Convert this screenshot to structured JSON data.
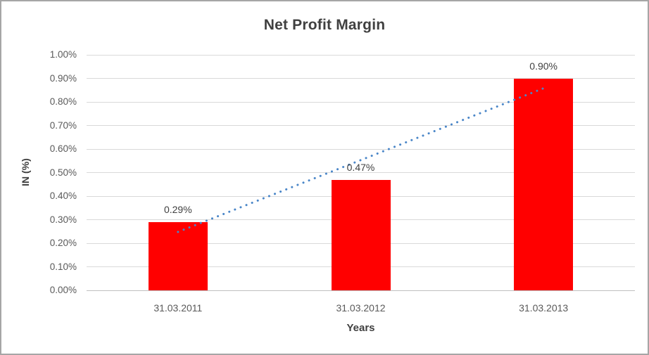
{
  "chart_data": {
    "type": "bar",
    "title": "Net Profit Margin",
    "xlabel": "Years",
    "ylabel": "IN (%)",
    "categories": [
      "31.03.2011",
      "31.03.2012",
      "31.03.2013"
    ],
    "series": [
      {
        "name": "Net Profit Margin",
        "values": [
          0.29,
          0.47,
          0.9
        ],
        "data_labels": [
          "0.29%",
          "0.47%",
          "0.90%"
        ],
        "color": "#ff0000"
      }
    ],
    "ylim": [
      0,
      1.0
    ],
    "ytick_step": 0.1,
    "ytick_labels": [
      "0.00%",
      "0.10%",
      "0.20%",
      "0.30%",
      "0.40%",
      "0.50%",
      "0.60%",
      "0.70%",
      "0.80%",
      "0.90%",
      "1.00%"
    ],
    "grid": true,
    "legend_position": "none",
    "trendline": {
      "type": "linear",
      "style": "dotted",
      "color": "#4a86c8",
      "start_value": 0.248,
      "end_value": 0.858
    }
  },
  "colors": {
    "bar": "#ff0000",
    "trendline": "#4a86c8",
    "gridline": "#d9d9d9",
    "axis_line": "#bfbfbf",
    "frame_border": "#a6a6a6",
    "title_text": "#404040",
    "tick_text": "#595959",
    "background": "#ffffff"
  }
}
